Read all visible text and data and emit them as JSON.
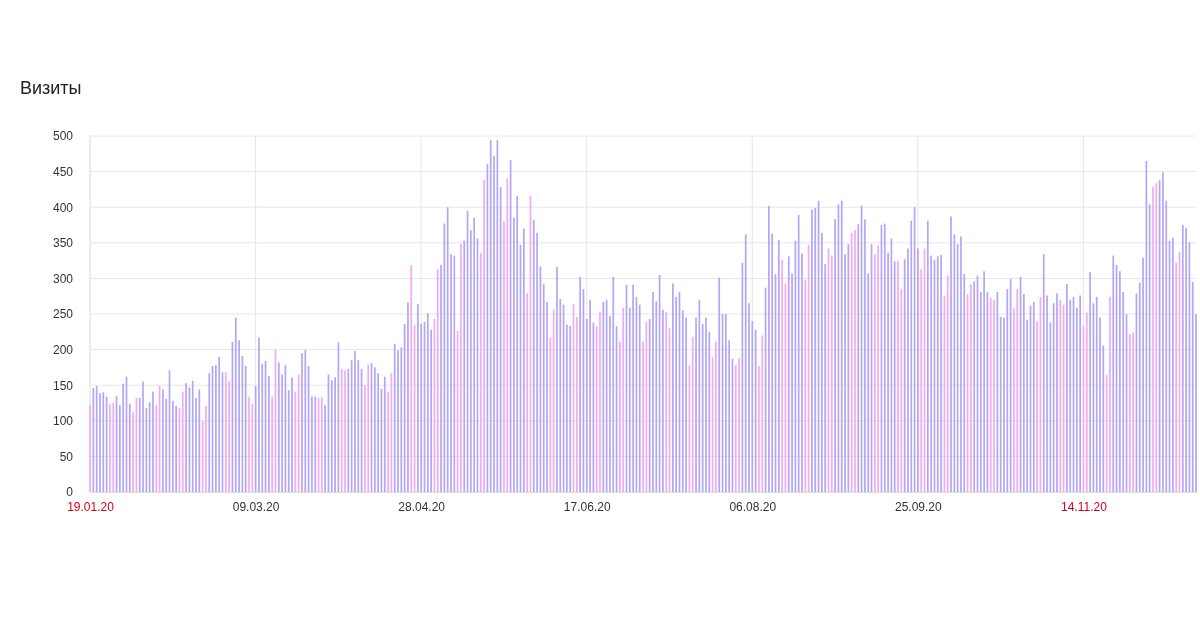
{
  "chart_data": {
    "type": "bar",
    "title": "Визиты",
    "x": [
      "2020-01-19",
      "2020-01-20",
      "2020-01-21",
      "2020-01-22",
      "2020-01-23",
      "2020-01-24",
      "2020-01-25",
      "2020-01-26",
      "2020-01-27",
      "2020-01-28",
      "2020-01-29",
      "2020-01-30",
      "2020-01-31",
      "2020-02-01",
      "2020-02-02",
      "2020-02-03",
      "2020-02-04",
      "2020-02-05",
      "2020-02-06",
      "2020-02-07",
      "2020-02-08",
      "2020-02-09",
      "2020-02-10",
      "2020-02-11",
      "2020-02-12",
      "2020-02-13",
      "2020-02-14",
      "2020-02-15",
      "2020-02-16",
      "2020-02-17",
      "2020-02-18",
      "2020-02-19",
      "2020-02-20",
      "2020-02-21",
      "2020-02-22",
      "2020-02-23",
      "2020-02-24",
      "2020-02-25",
      "2020-02-26",
      "2020-02-27",
      "2020-02-28",
      "2020-02-29",
      "2020-03-01",
      "2020-03-02",
      "2020-03-03",
      "2020-03-04",
      "2020-03-05",
      "2020-03-06",
      "2020-03-07",
      "2020-03-08",
      "2020-03-09",
      "2020-03-10",
      "2020-03-11",
      "2020-03-12",
      "2020-03-13",
      "2020-03-14",
      "2020-03-15",
      "2020-03-16",
      "2020-03-17",
      "2020-03-18",
      "2020-03-19",
      "2020-03-20",
      "2020-03-21",
      "2020-03-22",
      "2020-03-23",
      "2020-03-24",
      "2020-03-25",
      "2020-03-26",
      "2020-03-27",
      "2020-03-28",
      "2020-03-29",
      "2020-03-30",
      "2020-03-31",
      "2020-04-01",
      "2020-04-02",
      "2020-04-03",
      "2020-04-04",
      "2020-04-05",
      "2020-04-06",
      "2020-04-07",
      "2020-04-08",
      "2020-04-09",
      "2020-04-10",
      "2020-04-11",
      "2020-04-12",
      "2020-04-13",
      "2020-04-14",
      "2020-04-15",
      "2020-04-16",
      "2020-04-17",
      "2020-04-18",
      "2020-04-19",
      "2020-04-20",
      "2020-04-21",
      "2020-04-22",
      "2020-04-23",
      "2020-04-24",
      "2020-04-25",
      "2020-04-26",
      "2020-04-27",
      "2020-04-28",
      "2020-04-29",
      "2020-04-30",
      "2020-05-01",
      "2020-05-02",
      "2020-05-03",
      "2020-05-04",
      "2020-05-05",
      "2020-05-06",
      "2020-05-07",
      "2020-05-08",
      "2020-05-09",
      "2020-05-10",
      "2020-05-11",
      "2020-05-12",
      "2020-05-13",
      "2020-05-14",
      "2020-05-15",
      "2020-05-16",
      "2020-05-17",
      "2020-05-18",
      "2020-05-19",
      "2020-05-20",
      "2020-05-21",
      "2020-05-22",
      "2020-05-23",
      "2020-05-24",
      "2020-05-25",
      "2020-05-26",
      "2020-05-27",
      "2020-05-28",
      "2020-05-29",
      "2020-05-30",
      "2020-05-31",
      "2020-06-01",
      "2020-06-02",
      "2020-06-03",
      "2020-06-04",
      "2020-06-05",
      "2020-06-06",
      "2020-06-07",
      "2020-06-08",
      "2020-06-09",
      "2020-06-10",
      "2020-06-11",
      "2020-06-12",
      "2020-06-13",
      "2020-06-14",
      "2020-06-15",
      "2020-06-16",
      "2020-06-17",
      "2020-06-18",
      "2020-06-19",
      "2020-06-20",
      "2020-06-21",
      "2020-06-22",
      "2020-06-23",
      "2020-06-24",
      "2020-06-25",
      "2020-06-26",
      "2020-06-27",
      "2020-06-28",
      "2020-06-29",
      "2020-06-30",
      "2020-07-01",
      "2020-07-02",
      "2020-07-03",
      "2020-07-04",
      "2020-07-05",
      "2020-07-06",
      "2020-07-07",
      "2020-07-08",
      "2020-07-09",
      "2020-07-10",
      "2020-07-11",
      "2020-07-12",
      "2020-07-13",
      "2020-07-14",
      "2020-07-15",
      "2020-07-16",
      "2020-07-17",
      "2020-07-18",
      "2020-07-19",
      "2020-07-20",
      "2020-07-21",
      "2020-07-22",
      "2020-07-23",
      "2020-07-24",
      "2020-07-25",
      "2020-07-26",
      "2020-07-27",
      "2020-07-28",
      "2020-07-29",
      "2020-07-30",
      "2020-07-31",
      "2020-08-01",
      "2020-08-02",
      "2020-08-03",
      "2020-08-04",
      "2020-08-05",
      "2020-08-06",
      "2020-08-07",
      "2020-08-08",
      "2020-08-09",
      "2020-08-10",
      "2020-08-11",
      "2020-08-12",
      "2020-08-13",
      "2020-08-14",
      "2020-08-15",
      "2020-08-16",
      "2020-08-17",
      "2020-08-18",
      "2020-08-19",
      "2020-08-20",
      "2020-08-21",
      "2020-08-22",
      "2020-08-23",
      "2020-08-24",
      "2020-08-25",
      "2020-08-26",
      "2020-08-27",
      "2020-08-28",
      "2020-08-29",
      "2020-08-30",
      "2020-08-31",
      "2020-09-01",
      "2020-09-02",
      "2020-09-03",
      "2020-09-04",
      "2020-09-05",
      "2020-09-06",
      "2020-09-07",
      "2020-09-08",
      "2020-09-09",
      "2020-09-10",
      "2020-09-11",
      "2020-09-12",
      "2020-09-13",
      "2020-09-14",
      "2020-09-15",
      "2020-09-16",
      "2020-09-17",
      "2020-09-18",
      "2020-09-19",
      "2020-09-20",
      "2020-09-21",
      "2020-09-22",
      "2020-09-23",
      "2020-09-24",
      "2020-09-25",
      "2020-09-26",
      "2020-09-27",
      "2020-09-28",
      "2020-09-29",
      "2020-09-30",
      "2020-10-01",
      "2020-10-02",
      "2020-10-03",
      "2020-10-04",
      "2020-10-05",
      "2020-10-06",
      "2020-10-07",
      "2020-10-08",
      "2020-10-09",
      "2020-10-10",
      "2020-10-11",
      "2020-10-12",
      "2020-10-13",
      "2020-10-14",
      "2020-10-15",
      "2020-10-16",
      "2020-10-17",
      "2020-10-18",
      "2020-10-19",
      "2020-10-20",
      "2020-10-21",
      "2020-10-22",
      "2020-10-23",
      "2020-10-24",
      "2020-10-25",
      "2020-10-26",
      "2020-10-27",
      "2020-10-28",
      "2020-10-29",
      "2020-10-30",
      "2020-10-31",
      "2020-11-01",
      "2020-11-02",
      "2020-11-03",
      "2020-11-04",
      "2020-11-05",
      "2020-11-06",
      "2020-11-07",
      "2020-11-08",
      "2020-11-09",
      "2020-11-10",
      "2020-11-11",
      "2020-11-12",
      "2020-11-13",
      "2020-11-14",
      "2020-11-15",
      "2020-11-16",
      "2020-11-17",
      "2020-11-18",
      "2020-11-19",
      "2020-11-20",
      "2020-11-21",
      "2020-11-22",
      "2020-11-23",
      "2020-11-24",
      "2020-11-25",
      "2020-11-26",
      "2020-11-27",
      "2020-11-28",
      "2020-11-29",
      "2020-11-30",
      "2020-12-01",
      "2020-12-02",
      "2020-12-03",
      "2020-12-04",
      "2020-12-05",
      "2020-12-06",
      "2020-12-07",
      "2020-12-08",
      "2020-12-09",
      "2020-12-10",
      "2020-12-11",
      "2020-12-12",
      "2020-12-13",
      "2020-12-14",
      "2020-12-15",
      "2020-12-16",
      "2020-12-17",
      "2020-12-18"
    ],
    "values": [
      122,
      146,
      149,
      139,
      140,
      134,
      124,
      125,
      135,
      122,
      152,
      162,
      124,
      112,
      132,
      132,
      155,
      118,
      126,
      141,
      122,
      149,
      144,
      131,
      171,
      128,
      121,
      118,
      141,
      153,
      147,
      156,
      132,
      144,
      100,
      121,
      167,
      177,
      178,
      190,
      168,
      168,
      156,
      211,
      245,
      213,
      191,
      177,
      134,
      124,
      149,
      217,
      180,
      184,
      163,
      134,
      200,
      182,
      165,
      178,
      143,
      161,
      141,
      165,
      195,
      200,
      177,
      134,
      134,
      132,
      133,
      122,
      165,
      157,
      161,
      210,
      173,
      171,
      173,
      185,
      198,
      185,
      173,
      150,
      179,
      181,
      175,
      167,
      145,
      162,
      141,
      167,
      208,
      199,
      203,
      236,
      266,
      319,
      235,
      264,
      236,
      239,
      251,
      228,
      243,
      313,
      319,
      377,
      400,
      334,
      332,
      226,
      349,
      353,
      395,
      368,
      385,
      356,
      336,
      438,
      461,
      494,
      472,
      494,
      428,
      380,
      440,
      466,
      385,
      416,
      347,
      370,
      279,
      416,
      382,
      364,
      317,
      292,
      267,
      217,
      256,
      316,
      271,
      263,
      235,
      233,
      264,
      246,
      302,
      285,
      243,
      270,
      238,
      233,
      253,
      267,
      270,
      247,
      302,
      233,
      211,
      259,
      291,
      259,
      291,
      274,
      263,
      211,
      239,
      243,
      281,
      268,
      305,
      256,
      253,
      230,
      293,
      274,
      281,
      255,
      245,
      178,
      218,
      245,
      270,
      236,
      245,
      225,
      190,
      211,
      301,
      250,
      250,
      213,
      187,
      178,
      188,
      322,
      362,
      265,
      240,
      228,
      177,
      220,
      287,
      402,
      363,
      306,
      354,
      326,
      293,
      331,
      307,
      353,
      389,
      335,
      298,
      347,
      397,
      399,
      409,
      364,
      320,
      342,
      332,
      383,
      404,
      409,
      334,
      348,
      364,
      368,
      376,
      402,
      383,
      307,
      348,
      334,
      346,
      375,
      377,
      336,
      356,
      324,
      324,
      285,
      327,
      342,
      381,
      400,
      342,
      313,
      342,
      381,
      332,
      326,
      331,
      333,
      276,
      304,
      387,
      362,
      348,
      359,
      306,
      278,
      292,
      296,
      304,
      281,
      310,
      281,
      273,
      270,
      281,
      246,
      245,
      285,
      299,
      258,
      285,
      302,
      278,
      242,
      262,
      267,
      239,
      274,
      334,
      276,
      238,
      265,
      279,
      270,
      263,
      292,
      270,
      274,
      259,
      276,
      233,
      252,
      309,
      265,
      274,
      245,
      206,
      164,
      274,
      332,
      319,
      310,
      281,
      250,
      222,
      224,
      279,
      294,
      329,
      465,
      404,
      429,
      434,
      438,
      449,
      409,
      353,
      357,
      322,
      337,
      375,
      371,
      351,
      295,
      250
    ],
    "colors": [
      "#f2aaf2",
      "#b3a5f7",
      "#b3a5f7",
      "#b3a5f7",
      "#b3a5f7",
      "#b3a5f7",
      "#f2aaf2",
      "#f2aaf2",
      "#b3a5f7",
      "#b3a5f7",
      "#b3a5f7",
      "#b3a5f7",
      "#b3a5f7",
      "#f2aaf2",
      "#f2aaf2",
      "#b3a5f7",
      "#b3a5f7",
      "#b3a5f7",
      "#b3a5f7",
      "#b3a5f7",
      "#f2aaf2",
      "#f2aaf2",
      "#b3a5f7",
      "#b3a5f7",
      "#b3a5f7",
      "#b3a5f7",
      "#b3a5f7",
      "#f2aaf2",
      "#f2aaf2",
      "#b3a5f7",
      "#b3a5f7",
      "#b3a5f7",
      "#b3a5f7",
      "#b3a5f7",
      "#f2aaf2",
      "#f2aaf2",
      "#b3a5f7",
      "#b3a5f7",
      "#b3a5f7",
      "#b3a5f7",
      "#b3a5f7",
      "#f2aaf2",
      "#f2aaf2",
      "#b3a5f7",
      "#b3a5f7",
      "#b3a5f7",
      "#b3a5f7",
      "#b3a5f7",
      "#f2aaf2",
      "#f2aaf2",
      "#b3a5f7",
      "#b3a5f7",
      "#b3a5f7",
      "#b3a5f7",
      "#b3a5f7",
      "#f2aaf2",
      "#f2aaf2",
      "#b3a5f7",
      "#b3a5f7",
      "#b3a5f7",
      "#b3a5f7",
      "#b3a5f7",
      "#f2aaf2",
      "#f2aaf2",
      "#b3a5f7",
      "#b3a5f7",
      "#b3a5f7",
      "#b3a5f7",
      "#b3a5f7",
      "#f2aaf2",
      "#f2aaf2",
      "#b3a5f7",
      "#b3a5f7",
      "#b3a5f7",
      "#b3a5f7",
      "#b3a5f7",
      "#f2aaf2",
      "#f2aaf2",
      "#b3a5f7",
      "#b3a5f7",
      "#b3a5f7",
      "#b3a5f7",
      "#b3a5f7",
      "#f2aaf2",
      "#f2aaf2",
      "#b3a5f7",
      "#b3a5f7",
      "#b3a5f7",
      "#b3a5f7",
      "#b3a5f7",
      "#f2aaf2",
      "#f2aaf2",
      "#b3a5f7",
      "#b3a5f7",
      "#b3a5f7",
      "#b3a5f7",
      "#b3a5f7",
      "#f2aaf2",
      "#f2aaf2",
      "#b3a5f7",
      "#b3a5f7",
      "#b3a5f7",
      "#b3a5f7",
      "#b3a5f7",
      "#f2aaf2",
      "#f2aaf2",
      "#b3a5f7",
      "#b3a5f7",
      "#b3a5f7",
      "#b3a5f7",
      "#b3a5f7",
      "#f2aaf2",
      "#f2aaf2",
      "#b3a5f7",
      "#b3a5f7",
      "#b3a5f7",
      "#b3a5f7",
      "#b3a5f7",
      "#f2aaf2",
      "#f2aaf2",
      "#b3a5f7",
      "#b3a5f7",
      "#b3a5f7",
      "#b3a5f7",
      "#b3a5f7",
      "#f2aaf2",
      "#f2aaf2",
      "#b3a5f7",
      "#b3a5f7",
      "#b3a5f7",
      "#b3a5f7",
      "#b3a5f7",
      "#f2aaf2",
      "#f2aaf2",
      "#b3a5f7",
      "#b3a5f7",
      "#b3a5f7",
      "#b3a5f7",
      "#b3a5f7",
      "#f2aaf2",
      "#f2aaf2",
      "#b3a5f7",
      "#b3a5f7",
      "#b3a5f7",
      "#b3a5f7",
      "#b3a5f7",
      "#f2aaf2",
      "#f2aaf2",
      "#b3a5f7",
      "#b3a5f7",
      "#b3a5f7",
      "#b3a5f7",
      "#b3a5f7",
      "#f2aaf2",
      "#f2aaf2",
      "#b3a5f7",
      "#b3a5f7",
      "#b3a5f7",
      "#b3a5f7",
      "#b3a5f7",
      "#f2aaf2",
      "#f2aaf2",
      "#b3a5f7",
      "#b3a5f7",
      "#b3a5f7",
      "#b3a5f7",
      "#b3a5f7",
      "#f2aaf2",
      "#f2aaf2",
      "#b3a5f7",
      "#b3a5f7",
      "#b3a5f7",
      "#b3a5f7",
      "#b3a5f7",
      "#f2aaf2",
      "#f2aaf2",
      "#b3a5f7",
      "#b3a5f7",
      "#b3a5f7",
      "#b3a5f7",
      "#b3a5f7",
      "#f2aaf2",
      "#f2aaf2",
      "#b3a5f7",
      "#b3a5f7",
      "#b3a5f7",
      "#b3a5f7",
      "#b3a5f7",
      "#f2aaf2",
      "#f2aaf2",
      "#b3a5f7",
      "#b3a5f7",
      "#b3a5f7",
      "#b3a5f7",
      "#b3a5f7",
      "#f2aaf2",
      "#f2aaf2",
      "#b3a5f7",
      "#b3a5f7",
      "#b3a5f7",
      "#b3a5f7",
      "#b3a5f7",
      "#f2aaf2",
      "#f2aaf2",
      "#b3a5f7",
      "#b3a5f7",
      "#b3a5f7",
      "#b3a5f7",
      "#b3a5f7",
      "#f2aaf2",
      "#f2aaf2",
      "#b3a5f7",
      "#b3a5f7",
      "#b3a5f7",
      "#b3a5f7",
      "#b3a5f7",
      "#f2aaf2",
      "#f2aaf2",
      "#b3a5f7",
      "#b3a5f7",
      "#b3a5f7",
      "#b3a5f7",
      "#b3a5f7",
      "#f2aaf2",
      "#f2aaf2",
      "#b3a5f7",
      "#b3a5f7",
      "#b3a5f7",
      "#b3a5f7",
      "#b3a5f7",
      "#f2aaf2",
      "#f2aaf2",
      "#b3a5f7",
      "#b3a5f7",
      "#b3a5f7",
      "#b3a5f7",
      "#b3a5f7",
      "#f2aaf2",
      "#f2aaf2",
      "#b3a5f7",
      "#b3a5f7",
      "#b3a5f7",
      "#b3a5f7",
      "#b3a5f7",
      "#f2aaf2",
      "#f2aaf2",
      "#b3a5f7",
      "#b3a5f7",
      "#b3a5f7",
      "#b3a5f7",
      "#b3a5f7",
      "#f2aaf2",
      "#f2aaf2",
      "#b3a5f7",
      "#b3a5f7",
      "#b3a5f7",
      "#b3a5f7",
      "#b3a5f7",
      "#f2aaf2",
      "#f2aaf2",
      "#b3a5f7",
      "#b3a5f7",
      "#b3a5f7",
      "#b3a5f7",
      "#b3a5f7",
      "#f2aaf2",
      "#f2aaf2",
      "#b3a5f7",
      "#b3a5f7",
      "#b3a5f7",
      "#b3a5f7",
      "#b3a5f7",
      "#f2aaf2",
      "#f2aaf2",
      "#b3a5f7",
      "#b3a5f7",
      "#b3a5f7",
      "#b3a5f7",
      "#b3a5f7",
      "#f2aaf2",
      "#f2aaf2",
      "#b3a5f7",
      "#b3a5f7",
      "#b3a5f7",
      "#b3a5f7",
      "#b3a5f7",
      "#f2aaf2",
      "#f2aaf2",
      "#b3a5f7",
      "#b3a5f7",
      "#b3a5f7",
      "#b3a5f7",
      "#b3a5f7",
      "#f2aaf2",
      "#f2aaf2",
      "#b3a5f7",
      "#b3a5f7",
      "#b3a5f7",
      "#b3a5f7",
      "#b3a5f7",
      "#f2aaf2",
      "#f2aaf2",
      "#b3a5f7",
      "#b3a5f7",
      "#b3a5f7",
      "#b3a5f7",
      "#b3a5f7",
      "#f2aaf2",
      "#f2aaf2",
      "#b3a5f7",
      "#b3a5f7",
      "#b3a5f7",
      "#b3a5f7",
      "#b3a5f7",
      "#f2aaf2",
      "#f2aaf2",
      "#b3a5f7",
      "#b3a5f7",
      "#b3a5f7",
      "#b3a5f7",
      "#b3a5f7",
      "#f2aaf2",
      "#f2aaf2",
      "#b3a5f7",
      "#b3a5f7",
      "#b3a5f7",
      "#b3a5f7",
      "#b3a5f7",
      "#f2aaf2",
      "#f2aaf2",
      "#b3a5f7",
      "#b3a5f7",
      "#b3a5f7",
      "#b3a5f7",
      "#b3a5f7"
    ],
    "xlim": [
      "2020-01-19",
      "2020-12-18"
    ],
    "xticks": [
      {
        "value": "2020-01-19",
        "label": "19.01.20"
      },
      {
        "value": "2020-03-09",
        "label": "09.03.20"
      },
      {
        "value": "2020-04-28",
        "label": "28.04.20"
      },
      {
        "value": "2020-06-17",
        "label": "17.06.20"
      },
      {
        "value": "2020-08-06",
        "label": "06.08.20"
      },
      {
        "value": "2020-09-25",
        "label": "25.09.20"
      },
      {
        "value": "2020-11-14",
        "label": "14.11.20"
      }
    ],
    "ylim": [
      0,
      500
    ],
    "yticks": [
      0,
      50,
      100,
      150,
      200,
      250,
      300,
      350,
      400,
      450,
      500
    ],
    "grid": true
  }
}
